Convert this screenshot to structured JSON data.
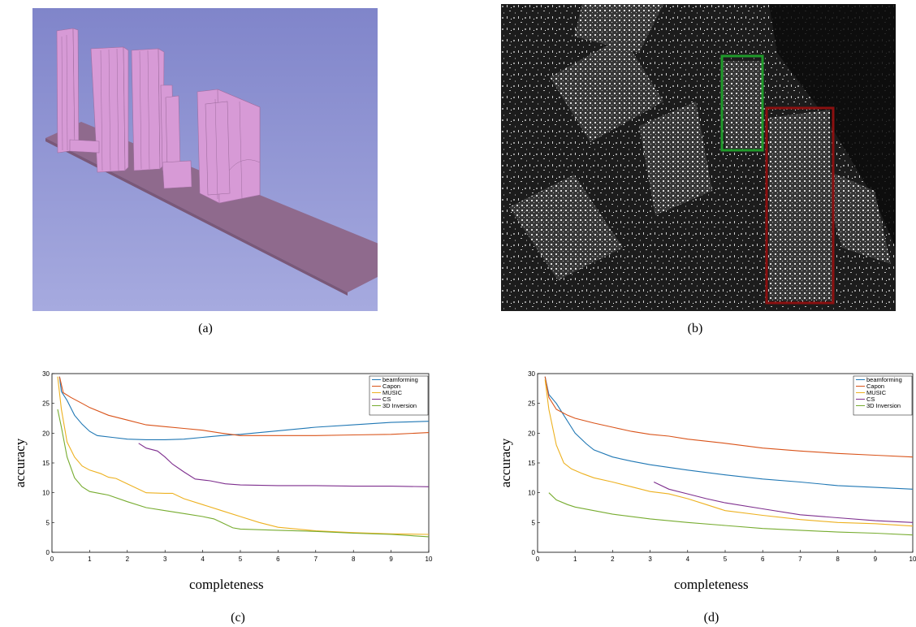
{
  "captions": {
    "a": "(a)",
    "b": "(b)",
    "c": "(c)",
    "d": "(d)"
  },
  "colors": {
    "bg_purple_top": "#8489cc",
    "bg_purple_bottom": "#a8abe0",
    "building_pink": "#d79ad6",
    "ground_mauve": "#8f6a8d",
    "green_box": "#1f9a2a",
    "red_box": "#8b1010",
    "series_blue": "#1f77b4",
    "series_orange": "#d95319",
    "series_yellow": "#edb120",
    "series_purple": "#7e2f8e",
    "series_green": "#77ac30"
  },
  "chart_data": [
    {
      "type": "line",
      "panel": "(c)",
      "xlabel": "completeness",
      "ylabel": "accuracy",
      "xlim": [
        0,
        10
      ],
      "ylim": [
        0,
        30
      ],
      "xticks": [
        "0",
        "1",
        "2",
        "3",
        "4",
        "5",
        "6",
        "7",
        "8",
        "9",
        "10"
      ],
      "yticks": [
        "0",
        "5",
        "10",
        "15",
        "20",
        "25",
        "30"
      ],
      "legend_position": "top-right",
      "series": [
        {
          "name": "beamforming",
          "color": "#1f77b4",
          "points": [
            [
              0.2,
              29.5
            ],
            [
              0.25,
              27
            ],
            [
              0.4,
              25.5
            ],
            [
              0.6,
              23
            ],
            [
              0.8,
              21.5
            ],
            [
              1,
              20.3
            ],
            [
              1.2,
              19.6
            ],
            [
              1.6,
              19.3
            ],
            [
              2,
              19
            ],
            [
              2.5,
              18.9
            ],
            [
              3,
              18.9
            ],
            [
              3.5,
              19
            ],
            [
              4,
              19.3
            ],
            [
              4.5,
              19.6
            ],
            [
              5,
              19.8
            ],
            [
              6,
              20.4
            ],
            [
              7,
              21
            ],
            [
              8,
              21.4
            ],
            [
              9,
              21.8
            ],
            [
              10,
              22
            ]
          ]
        },
        {
          "name": "Capon",
          "color": "#d95319",
          "points": [
            [
              0.2,
              29.5
            ],
            [
              0.3,
              26.8
            ],
            [
              0.5,
              26
            ],
            [
              0.8,
              25
            ],
            [
              1,
              24.3
            ],
            [
              1.5,
              23
            ],
            [
              2,
              22.2
            ],
            [
              2.5,
              21.4
            ],
            [
              3,
              21.1
            ],
            [
              3.5,
              20.8
            ],
            [
              4,
              20.5
            ],
            [
              4.5,
              20
            ],
            [
              5,
              19.6
            ],
            [
              6,
              19.6
            ],
            [
              7,
              19.6
            ],
            [
              8,
              19.7
            ],
            [
              9,
              19.8
            ],
            [
              10,
              20.1
            ]
          ]
        },
        {
          "name": "MUSIC",
          "color": "#edb120",
          "points": [
            [
              0.15,
              29.5
            ],
            [
              0.25,
              24
            ],
            [
              0.4,
              18.5
            ],
            [
              0.6,
              16
            ],
            [
              0.8,
              14.5
            ],
            [
              1,
              13.8
            ],
            [
              1.3,
              13.2
            ],
            [
              1.5,
              12.6
            ],
            [
              1.7,
              12.4
            ],
            [
              2,
              11.5
            ],
            [
              2.5,
              10
            ],
            [
              3,
              9.9
            ],
            [
              3.2,
              9.9
            ],
            [
              3.5,
              9
            ],
            [
              4,
              8
            ],
            [
              4.5,
              7
            ],
            [
              5,
              6
            ],
            [
              5.5,
              5
            ],
            [
              6,
              4.2
            ],
            [
              7,
              3.6
            ],
            [
              8,
              3.3
            ],
            [
              9,
              3.1
            ],
            [
              10,
              3
            ]
          ]
        },
        {
          "name": "CS",
          "color": "#7e2f8e",
          "points": [
            [
              2.3,
              18.3
            ],
            [
              2.5,
              17.5
            ],
            [
              2.8,
              17
            ],
            [
              3,
              16
            ],
            [
              3.2,
              14.8
            ],
            [
              3.5,
              13.5
            ],
            [
              3.8,
              12.3
            ],
            [
              4.2,
              12
            ],
            [
              4.6,
              11.5
            ],
            [
              5,
              11.3
            ],
            [
              6,
              11.2
            ],
            [
              7,
              11.2
            ],
            [
              8,
              11.1
            ],
            [
              9,
              11.1
            ],
            [
              10,
              11
            ]
          ]
        },
        {
          "name": "3D Inversion",
          "color": "#77ac30",
          "points": [
            [
              0.15,
              24
            ],
            [
              0.25,
              21
            ],
            [
              0.4,
              16
            ],
            [
              0.6,
              12.5
            ],
            [
              0.8,
              11
            ],
            [
              1,
              10.2
            ],
            [
              1.5,
              9.6
            ],
            [
              2,
              8.5
            ],
            [
              2.5,
              7.5
            ],
            [
              3,
              7
            ],
            [
              3.5,
              6.5
            ],
            [
              4,
              6
            ],
            [
              4.3,
              5.6
            ],
            [
              4.5,
              5
            ],
            [
              4.8,
              4.1
            ],
            [
              5,
              3.9
            ],
            [
              6,
              3.7
            ],
            [
              7,
              3.5
            ],
            [
              8,
              3.2
            ],
            [
              9,
              3
            ],
            [
              10,
              2.6
            ]
          ]
        }
      ]
    },
    {
      "type": "line",
      "panel": "(d)",
      "xlabel": "completeness",
      "ylabel": "accuracy",
      "xlim": [
        0,
        10
      ],
      "ylim": [
        0,
        30
      ],
      "xticks": [
        "0",
        "1",
        "2",
        "3",
        "4",
        "5",
        "6",
        "7",
        "8",
        "9",
        "10"
      ],
      "yticks": [
        "0",
        "5",
        "10",
        "15",
        "20",
        "25",
        "30"
      ],
      "legend_position": "top-right",
      "series": [
        {
          "name": "beamforming",
          "color": "#1f77b4",
          "points": [
            [
              0.2,
              29.5
            ],
            [
              0.3,
              26.5
            ],
            [
              0.5,
              25
            ],
            [
              0.7,
              23
            ],
            [
              0.9,
              21
            ],
            [
              1,
              20
            ],
            [
              1.3,
              18.2
            ],
            [
              1.5,
              17.2
            ],
            [
              2,
              16
            ],
            [
              2.5,
              15.3
            ],
            [
              3,
              14.7
            ],
            [
              4,
              13.8
            ],
            [
              5,
              13
            ],
            [
              6,
              12.3
            ],
            [
              7,
              11.8
            ],
            [
              8,
              11.2
            ],
            [
              9,
              10.9
            ],
            [
              10,
              10.6
            ]
          ]
        },
        {
          "name": "Capon",
          "color": "#d95319",
          "points": [
            [
              0.2,
              29.5
            ],
            [
              0.3,
              26
            ],
            [
              0.5,
              24
            ],
            [
              0.8,
              23
            ],
            [
              1,
              22.5
            ],
            [
              1.5,
              21.7
            ],
            [
              2,
              21
            ],
            [
              2.5,
              20.3
            ],
            [
              3,
              19.8
            ],
            [
              3.5,
              19.5
            ],
            [
              4,
              19
            ],
            [
              5,
              18.3
            ],
            [
              6,
              17.5
            ],
            [
              7,
              17
            ],
            [
              8,
              16.6
            ],
            [
              9,
              16.3
            ],
            [
              10,
              16
            ]
          ]
        },
        {
          "name": "MUSIC",
          "color": "#edb120",
          "points": [
            [
              0.2,
              29
            ],
            [
              0.3,
              24
            ],
            [
              0.5,
              18
            ],
            [
              0.7,
              15
            ],
            [
              0.9,
              14
            ],
            [
              1.2,
              13.2
            ],
            [
              1.5,
              12.5
            ],
            [
              2,
              11.8
            ],
            [
              2.5,
              11
            ],
            [
              3,
              10.2
            ],
            [
              3.5,
              9.8
            ],
            [
              4,
              9
            ],
            [
              4.5,
              8
            ],
            [
              5,
              7
            ],
            [
              6,
              6.2
            ],
            [
              7,
              5.5
            ],
            [
              8,
              5
            ],
            [
              9,
              4.8
            ],
            [
              10,
              4.4
            ]
          ]
        },
        {
          "name": "CS",
          "color": "#7e2f8e",
          "points": [
            [
              3.1,
              11.8
            ],
            [
              3.5,
              10.6
            ],
            [
              4,
              9.8
            ],
            [
              4.5,
              9
            ],
            [
              5,
              8.3
            ],
            [
              6,
              7.3
            ],
            [
              7,
              6.3
            ],
            [
              8,
              5.8
            ],
            [
              9,
              5.3
            ],
            [
              10,
              5
            ]
          ]
        },
        {
          "name": "3D Inversion",
          "color": "#77ac30",
          "points": [
            [
              0.3,
              10
            ],
            [
              0.5,
              8.8
            ],
            [
              0.8,
              8
            ],
            [
              1,
              7.6
            ],
            [
              1.5,
              7
            ],
            [
              2,
              6.4
            ],
            [
              3,
              5.6
            ],
            [
              4,
              5
            ],
            [
              5,
              4.5
            ],
            [
              6,
              4
            ],
            [
              7,
              3.7
            ],
            [
              8,
              3.4
            ],
            [
              9,
              3.2
            ],
            [
              10,
              2.9
            ]
          ]
        }
      ]
    }
  ]
}
